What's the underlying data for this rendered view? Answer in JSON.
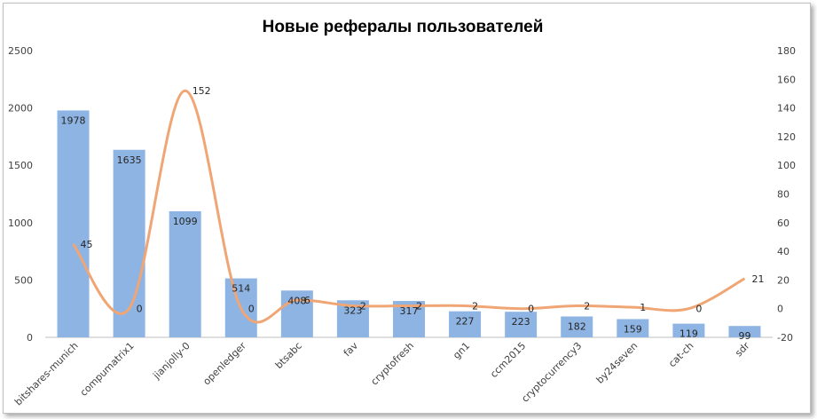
{
  "chart_data": {
    "type": "bar+line",
    "title": "Новые рефералы пользователей",
    "categories": [
      "bitshares-munich",
      "compumatrix1",
      "jianjolly-0",
      "openledger",
      "btsabc",
      "fav",
      "cryptofresh",
      "gn1",
      "ccm2015",
      "cryptocurrency3",
      "by24seven",
      "cat-ch",
      "sdr"
    ],
    "series": [
      {
        "type": "bar",
        "axis": "left",
        "color": "#8db4e2",
        "values": [
          1978,
          1635,
          1099,
          514,
          408,
          323,
          317,
          227,
          223,
          182,
          159,
          119,
          99
        ]
      },
      {
        "type": "line",
        "axis": "right",
        "color": "#f0a575",
        "values": [
          45,
          0,
          152,
          0,
          6,
          2,
          2,
          2,
          0,
          2,
          1,
          0,
          21
        ]
      }
    ],
    "y_left": {
      "min": 0,
      "max": 2500,
      "ticks": [
        "0",
        "500",
        "1000",
        "1500",
        "2000",
        "2500"
      ]
    },
    "y_right": {
      "min": -20,
      "max": 180,
      "ticks": [
        "-20",
        "0",
        "20",
        "40",
        "60",
        "80",
        "100",
        "120",
        "140",
        "160",
        "180"
      ]
    },
    "grid": false,
    "legend": "none"
  }
}
